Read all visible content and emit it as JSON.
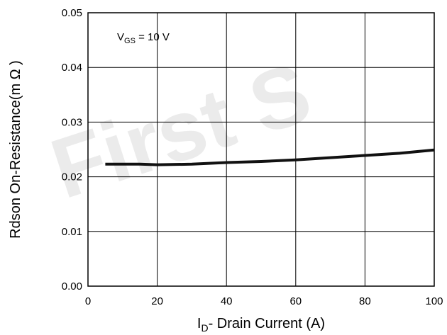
{
  "watermark": "First S",
  "chart_data": {
    "type": "line",
    "title": "",
    "xlabel_main": "I",
    "xlabel_sub": "D",
    "xlabel_rest": "- Drain Current (A)",
    "ylabel": "Rdson On-Resistance(m Ω )",
    "xlim": [
      0,
      100
    ],
    "ylim": [
      0,
      0.05
    ],
    "xticks": [
      "0",
      "20",
      "40",
      "60",
      "80",
      "100"
    ],
    "yticks": [
      "0.00",
      "0.01",
      "0.02",
      "0.03",
      "0.04",
      "0.05"
    ],
    "grid": true,
    "annotation": {
      "main": "V",
      "sub": "GS",
      "rest": " = 10 V"
    },
    "series": [
      {
        "x": [
          5,
          10,
          15,
          20,
          30,
          40,
          50,
          60,
          70,
          80,
          90,
          100
        ],
        "y": [
          0.0223,
          0.0223,
          0.0223,
          0.0222,
          0.0223,
          0.0226,
          0.0228,
          0.0231,
          0.0235,
          0.0239,
          0.0243,
          0.0249
        ]
      }
    ]
  }
}
